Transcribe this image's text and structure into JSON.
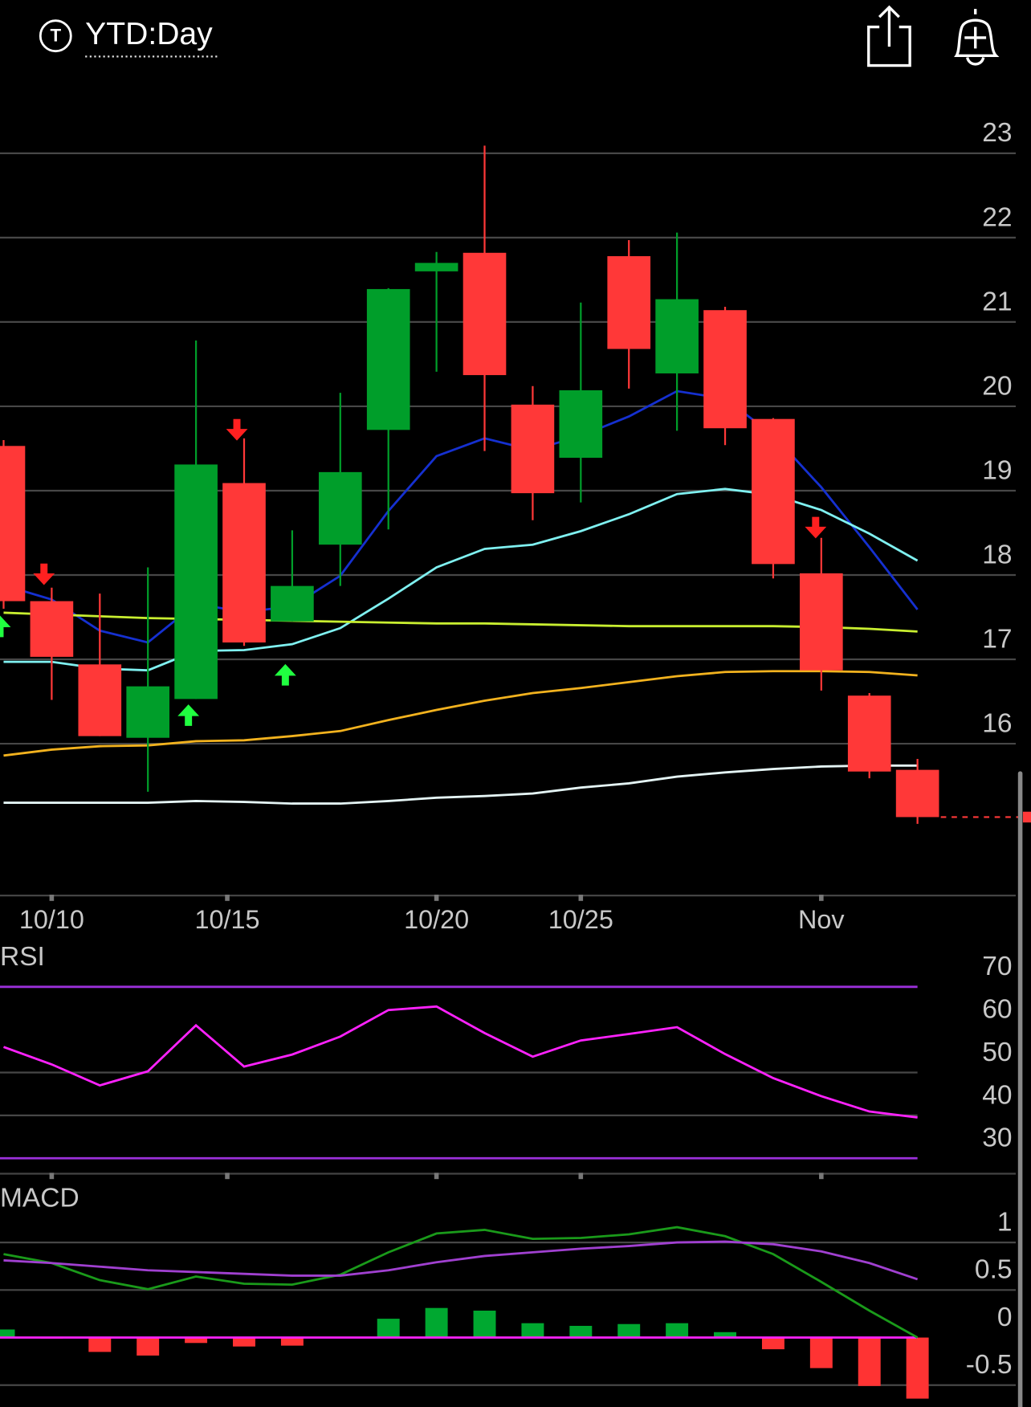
{
  "header": {
    "icon": "T",
    "title": "YTD:Day"
  },
  "chart_data": [
    {
      "type": "candlestick",
      "up_color": "#009e2a",
      "down_color": "#ff3838",
      "open": [
        19.53,
        17.69,
        16.94,
        16.07,
        16.53,
        19.09,
        17.45,
        18.36,
        19.72,
        21.6,
        21.82,
        20.02,
        19.39,
        21.78,
        20.39,
        21.14,
        19.85,
        18.02,
        16.57,
        15.69
      ],
      "high": [
        19.6,
        17.85,
        17.78,
        18.09,
        20.78,
        19.62,
        18.53,
        20.16,
        21.4,
        21.83,
        23.09,
        20.24,
        21.23,
        21.97,
        22.06,
        21.18,
        19.86,
        18.44,
        16.6,
        15.82
      ],
      "low": [
        17.6,
        16.52,
        16.09,
        15.43,
        16.53,
        17.16,
        17.45,
        17.87,
        18.54,
        20.41,
        19.47,
        18.65,
        18.86,
        20.21,
        19.71,
        19.54,
        17.96,
        16.63,
        15.59,
        15.05
      ],
      "close": [
        17.69,
        17.03,
        16.09,
        16.68,
        19.31,
        17.2,
        17.87,
        19.22,
        21.39,
        21.7,
        20.37,
        18.97,
        20.19,
        20.68,
        21.27,
        19.74,
        18.13,
        16.87,
        15.67,
        15.13
      ],
      "series": [
        {
          "color": "#1530d0",
          "values": [
            17.88,
            17.71,
            17.34,
            17.2,
            17.66,
            17.56,
            17.63,
            17.99,
            18.76,
            19.41,
            19.62,
            19.48,
            19.65,
            19.88,
            20.18,
            20.09,
            19.66,
            19.04,
            18.33,
            17.59
          ]
        },
        {
          "color": "#7ff0f0",
          "values": [
            16.97,
            16.97,
            16.89,
            16.87,
            17.1,
            17.11,
            17.18,
            17.37,
            17.72,
            18.09,
            18.31,
            18.36,
            18.52,
            18.72,
            18.96,
            19.02,
            18.95,
            18.77,
            18.49,
            18.17
          ]
        },
        {
          "color": "#c8ee30",
          "values": [
            17.553,
            17.532,
            17.511,
            17.489,
            17.479,
            17.468,
            17.457,
            17.447,
            17.436,
            17.426,
            17.426,
            17.415,
            17.404,
            17.394,
            17.394,
            17.394,
            17.394,
            17.383,
            17.362,
            17.33
          ]
        },
        {
          "color": "#f2b21e",
          "values": [
            15.86,
            15.93,
            15.97,
            15.98,
            16.03,
            16.04,
            16.09,
            16.15,
            16.28,
            16.4,
            16.51,
            16.6,
            16.66,
            16.73,
            16.8,
            16.85,
            16.86,
            16.86,
            16.85,
            16.81
          ]
        },
        {
          "color": "#e4f4f4",
          "values": [
            15.3,
            15.3,
            15.3,
            15.3,
            15.32,
            15.31,
            15.29,
            15.29,
            15.32,
            15.36,
            15.38,
            15.41,
            15.48,
            15.53,
            15.61,
            15.66,
            15.7,
            15.73,
            15.74,
            15.74
          ]
        }
      ],
      "ylim": [
        14.2,
        23.8
      ],
      "yticks": [
        16,
        17,
        18,
        19,
        20,
        21,
        22,
        23
      ],
      "xlim": [
        -0.075,
        21.36
      ],
      "xticks": [
        {
          "value": 1,
          "label": "10/10"
        },
        {
          "value": 4.65,
          "label": "10/15"
        },
        {
          "value": 9,
          "label": "10/20"
        },
        {
          "value": 12,
          "label": "10/25"
        },
        {
          "value": 17,
          "label": "Nov"
        }
      ]
    },
    {
      "type": "line",
      "title": "RSI",
      "series": [
        {
          "color": "#ff22ff",
          "values": [
            55.97,
            51.9,
            47.0,
            50.3,
            61.0,
            51.4,
            54.2,
            58.4,
            64.6,
            65.4,
            59.2,
            53.7,
            57.5,
            59.0,
            60.6,
            54.3,
            48.7,
            44.5,
            40.9,
            39.5
          ]
        }
      ],
      "levels": [
        70,
        30
      ],
      "level_color": "#9b30d9",
      "ylim": [
        26.4,
        80
      ],
      "yticks": [
        30,
        40,
        50,
        60,
        70
      ],
      "grid_ticks": [
        40,
        50
      ]
    },
    {
      "type": "macd",
      "title": "MACD",
      "series": [
        {
          "color": "#1a9a1a",
          "values": [
            0.877,
            0.783,
            0.604,
            0.509,
            0.642,
            0.566,
            0.557,
            0.66,
            0.896,
            1.094,
            1.132,
            1.038,
            1.047,
            1.085,
            1.16,
            1.066,
            0.877,
            0.585,
            0.283,
            0
          ]
        },
        {
          "color": "#a040d0",
          "values": [
            0.811,
            0.783,
            0.745,
            0.708,
            0.689,
            0.67,
            0.651,
            0.651,
            0.708,
            0.792,
            0.858,
            0.896,
            0.934,
            0.962,
            1.0,
            1.009,
            0.981,
            0.906,
            0.783,
            0.613
          ]
        }
      ],
      "histogram": [
        0.085,
        -0.01,
        -0.151,
        -0.189,
        -0.057,
        -0.094,
        -0.085,
        0.009,
        0.198,
        0.311,
        0.283,
        0.151,
        0.123,
        0.142,
        0.151,
        0.057,
        -0.123,
        -0.321,
        -0.509,
        -0.642
      ],
      "up_color": "#00a830",
      "down_color": "#ff3333",
      "zero_color": "#ff22ff",
      "ylim": [
        -0.73,
        1.6
      ],
      "yticks": [
        {
          "value": -0.5,
          "label": "-0.5"
        },
        0,
        {
          "value": 0.5,
          "label": "0.5"
        },
        1
      ]
    }
  ]
}
